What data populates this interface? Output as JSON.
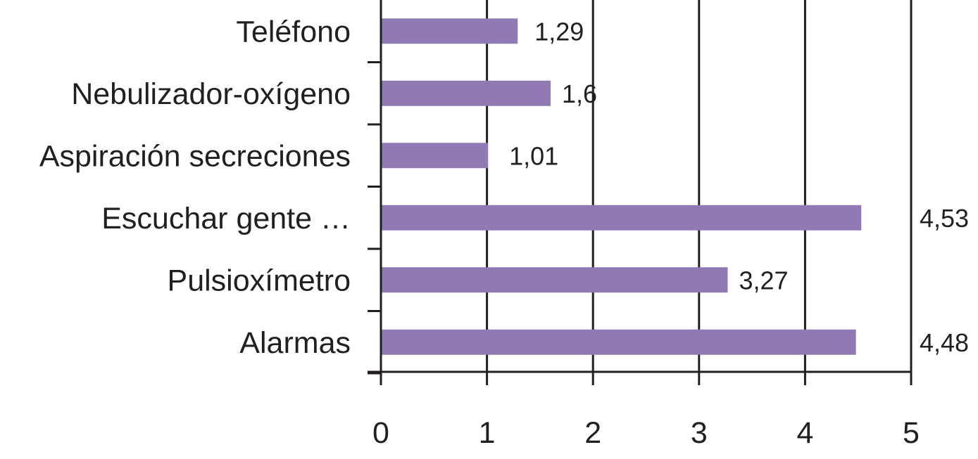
{
  "chart_data": {
    "type": "bar",
    "orientation": "horizontal",
    "categories": [
      "Teléfono",
      "Nebulizador-oxígeno",
      "Aspiración secreciones",
      "Escuchar gente …",
      "Pulsioxímetro",
      "Alarmas"
    ],
    "values": [
      1.29,
      1.6,
      1.01,
      4.53,
      3.27,
      4.48
    ],
    "value_labels": [
      "1,29",
      "1,6",
      "1,01",
      "4,53",
      "3,27",
      "4,48"
    ],
    "xlim": [
      0,
      5
    ],
    "x_ticks": [
      "0",
      "1",
      "2",
      "3",
      "4",
      "5"
    ],
    "grid": "vertical",
    "legend": "none",
    "bar_color": "#9179b3",
    "axis_color": "#231f20"
  }
}
